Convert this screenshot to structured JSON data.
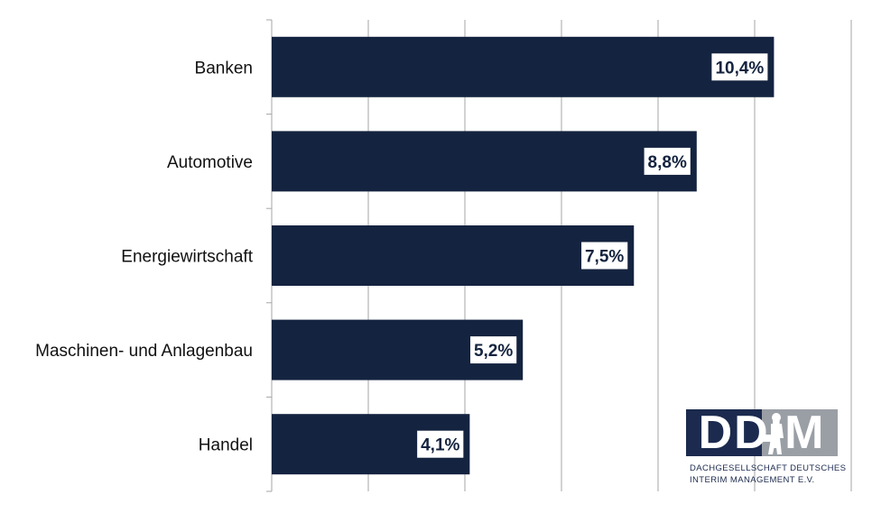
{
  "chart_data": {
    "type": "bar",
    "orientation": "horizontal",
    "categories": [
      "Banken",
      "Automotive",
      "Energiewirtschaft",
      "Maschinen- und Anlagenbau",
      "Handel"
    ],
    "values": [
      10.4,
      8.8,
      7.5,
      5.2,
      4.1
    ],
    "value_labels": [
      "10,4%",
      "8,8%",
      "7,5%",
      "5,2%",
      "4,1%"
    ],
    "xlim": [
      0,
      12
    ],
    "grid": true,
    "bar_color": "#14233f"
  },
  "logo": {
    "letters": "DDIM",
    "line1": "DACHGESELLSCHAFT DEUTSCHES",
    "line2": "INTERIM MANAGEMENT E.V.",
    "colors": {
      "navy": "#1b2a4e",
      "gray": "#9a9fa6"
    }
  }
}
